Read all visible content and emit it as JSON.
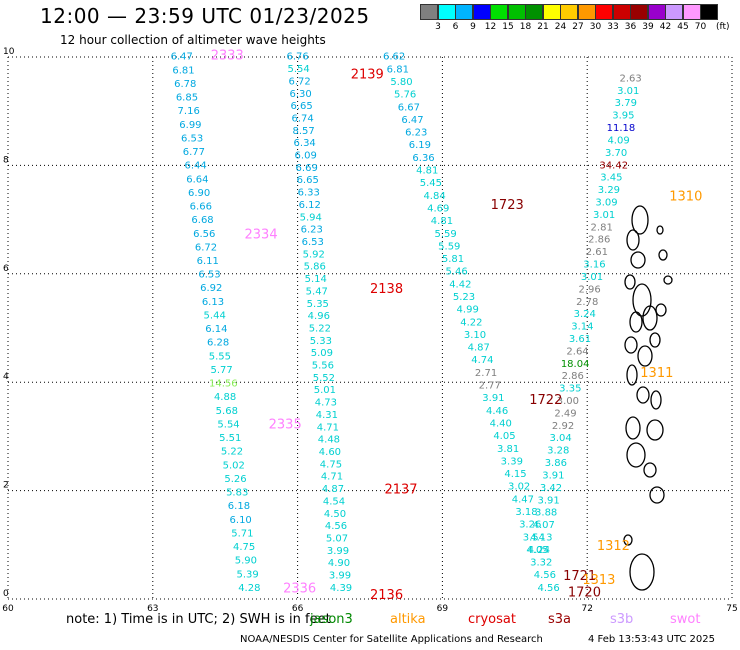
{
  "header": {
    "title": "12:00 — 23:59 UTC 01/23/2025",
    "subtitle": "12 hour collection of altimeter wave heights"
  },
  "legend": {
    "unit": "(ft)",
    "bins": [
      {
        "label": "3",
        "color": "#7f7f7f"
      },
      {
        "label": "6",
        "color": "#00ffff"
      },
      {
        "label": "9",
        "color": "#00b4ff"
      },
      {
        "label": "12",
        "color": "#0000ff"
      },
      {
        "label": "15",
        "color": "#00e000"
      },
      {
        "label": "18",
        "color": "#00c000"
      },
      {
        "label": "21",
        "color": "#009000"
      },
      {
        "label": "24",
        "color": "#ffff00"
      },
      {
        "label": "27",
        "color": "#ffcc00"
      },
      {
        "label": "30",
        "color": "#ff9900"
      },
      {
        "label": "33",
        "color": "#ff0000"
      },
      {
        "label": "36",
        "color": "#cc0000"
      },
      {
        "label": "39",
        "color": "#990000"
      },
      {
        "label": "42",
        "color": "#9900cc"
      },
      {
        "label": "45",
        "color": "#cc99ff"
      },
      {
        "label": "70",
        "color": "#ff99ff"
      },
      {
        "label": "",
        "color": "#000000"
      }
    ]
  },
  "axes": {
    "x_ticks": [
      "60",
      "63",
      "66",
      "69",
      "72",
      "75"
    ],
    "y_ticks": [
      "0",
      "2",
      "4",
      "6",
      "8",
      "10"
    ],
    "x_range": [
      60,
      75
    ],
    "y_range": [
      0,
      10
    ]
  },
  "tracks": [
    {
      "values": [
        "6.47",
        "6.81",
        "6.78",
        "6.85",
        "7.16",
        "6.99",
        "6.53",
        "6.77",
        "6.44",
        "6.64",
        "6.90",
        "6.66",
        "6.68",
        "6.56",
        "6.72",
        "6.11",
        "6.53",
        "6.92",
        "6.13",
        "5.44",
        "6.14",
        "6.28",
        "5.55",
        "5.77",
        "14.56",
        "4.88",
        "5.68",
        "5.54",
        "5.51",
        "5.22",
        "5.02",
        "5.26",
        "5.83",
        "6.18",
        "6.10",
        "5.71",
        "4.75",
        "5.90",
        "5.39",
        "4.28"
      ],
      "x_start": 63.6,
      "x_end": 65.0,
      "y_start": 9.95,
      "y_end": 0.15
    },
    {
      "values": [
        "6.76",
        "5.54",
        "6.72",
        "6.30",
        "6.65",
        "6.74",
        "8.57",
        "6.34",
        "6.09",
        "6.69",
        "6.65",
        "6.33",
        "6.12",
        "5.94",
        "6.23",
        "6.53",
        "5.92",
        "5.86",
        "5.14",
        "5.47",
        "5.35",
        "4.96",
        "5.22",
        "5.33",
        "5.09",
        "5.56",
        "5.52",
        "5.01",
        "4.73",
        "4.31",
        "4.71",
        "4.48",
        "4.60",
        "4.75",
        "4.71",
        "4.87",
        "4.54",
        "4.50",
        "4.56",
        "5.07",
        "3.99",
        "4.90",
        "3.99",
        "4.39"
      ],
      "x_start": 66.0,
      "x_end": 66.9,
      "y_start": 9.95,
      "y_end": 0.15
    },
    {
      "values": [
        "6.62",
        "6.81",
        "5.80",
        "5.76",
        "6.67",
        "6.47",
        "6.23",
        "6.19",
        "6.36",
        "4.81",
        "5.45",
        "4.84",
        "4.69",
        "4.81",
        "5.59",
        "5.59",
        "5.81",
        "5.46",
        "4.42",
        "5.23",
        "4.99",
        "4.22",
        "3.10",
        "4.87",
        "4.74",
        "2.71",
        "2.77",
        "3.91",
        "4.46",
        "4.40",
        "4.05",
        "3.81",
        "3.39",
        "4.15",
        "3.02",
        "4.47",
        "3.18",
        "3.26",
        "3.54",
        "4.05",
        "3.32",
        "4.56",
        "4.56"
      ],
      "x_start": 68.0,
      "x_end": 71.2,
      "y_start": 9.95,
      "y_end": 0.15
    },
    {
      "values": [
        "2.63",
        "3.01",
        "3.79",
        "3.95",
        "11.18",
        "4.09",
        "3.70",
        "34.42",
        "3.45",
        "3.29",
        "3.09",
        "3.01",
        "2.81",
        "2.86",
        "2.61",
        "3.16",
        "3.01",
        "2.96",
        "2.78",
        "3.24",
        "3.14",
        "3.61",
        "2.64",
        "18.04",
        "2.86",
        "3.35",
        "3.00",
        "2.49",
        "2.92",
        "3.04",
        "3.28",
        "3.86",
        "3.91",
        "3.42",
        "3.91",
        "3.88",
        "4.07",
        "4.13",
        "4.24"
      ],
      "x_start": 72.9,
      "x_end": 71.0,
      "y_start": 9.55,
      "y_end": 0.85
    }
  ],
  "special_colors": {
    "11.18": "#0000cc",
    "34.42": "#990000",
    "18.04": "#009000",
    "14.56": "#88ee55",
    "2.63": "#7f7f7f",
    "2.81": "#7f7f7f",
    "2.86": "#7f7f7f",
    "2.61": "#7f7f7f",
    "2.96": "#7f7f7f",
    "2.78": "#7f7f7f",
    "2.64": "#7f7f7f",
    "2.49": "#7f7f7f",
    "2.92": "#7f7f7f",
    "3.00": "#7f7f7f",
    "2.71": "#7f7f7f",
    "2.77": "#7f7f7f"
  },
  "time_labels": [
    {
      "text": "2333",
      "x": 64.2,
      "y": 9.95,
      "color": "#ff80ff"
    },
    {
      "text": "2334",
      "x": 64.9,
      "y": 6.65,
      "color": "#ff80ff"
    },
    {
      "text": "2335",
      "x": 65.4,
      "y": 3.15,
      "color": "#ff80ff"
    },
    {
      "text": "2336",
      "x": 65.7,
      "y": 0.12,
      "color": "#ff80ff"
    },
    {
      "text": "2139",
      "x": 67.1,
      "y": 9.6,
      "color": "#dd0000"
    },
    {
      "text": "2138",
      "x": 67.5,
      "y": 5.65,
      "color": "#dd0000"
    },
    {
      "text": "2137",
      "x": 67.8,
      "y": 1.95,
      "color": "#dd0000"
    },
    {
      "text": "2136",
      "x": 67.5,
      "y": 0.0,
      "color": "#dd0000"
    },
    {
      "text": "1723",
      "x": 70.0,
      "y": 7.2,
      "color": "#880000"
    },
    {
      "text": "1722",
      "x": 70.8,
      "y": 3.6,
      "color": "#880000"
    },
    {
      "text": "1721",
      "x": 71.5,
      "y": 0.35,
      "color": "#880000"
    },
    {
      "text": "1720",
      "x": 71.6,
      "y": 0.05,
      "color": "#880000"
    },
    {
      "text": "1310",
      "x": 73.7,
      "y": 7.35,
      "color": "#ff9900"
    },
    {
      "text": "1311",
      "x": 73.1,
      "y": 4.1,
      "color": "#ff9900"
    },
    {
      "text": "1312",
      "x": 72.2,
      "y": 0.9,
      "color": "#ff9900"
    },
    {
      "text": "1313",
      "x": 71.9,
      "y": 0.28,
      "color": "#ff9900"
    }
  ],
  "footer": {
    "note": "note:  1) Time is in UTC;  2) SWH is in feet",
    "satellites": [
      {
        "name": "jason3",
        "color": "#008800"
      },
      {
        "name": "altika",
        "color": "#ff9900"
      },
      {
        "name": "cryosat",
        "color": "#dd0000"
      },
      {
        "name": "s3a",
        "color": "#990000"
      },
      {
        "name": "s3b",
        "color": "#cc99ff"
      },
      {
        "name": "swot",
        "color": "#ff80ff"
      }
    ],
    "credit": "NOAA/NESDIS Center for Satellite Applications and Research",
    "timestamp": "4 Feb 13:53:43 UTC 2025"
  }
}
